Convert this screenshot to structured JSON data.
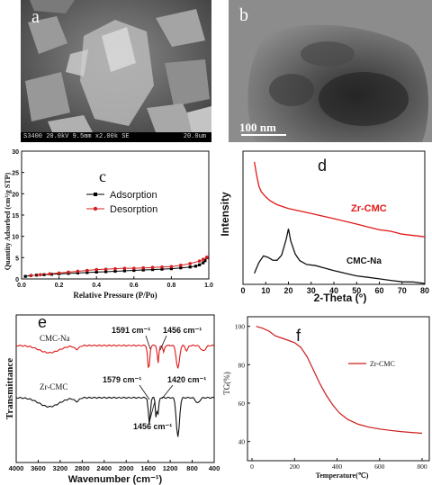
{
  "panels": {
    "a": {
      "letter": "a",
      "footer_left": "S3400 20.0kV 9.5mm x2.00k SE",
      "footer_right": "20.0um"
    },
    "b": {
      "letter": "b",
      "scale_label": "100 nm"
    },
    "c": {
      "letter": "c"
    },
    "d": {
      "letter": "d"
    },
    "e": {
      "letter": "e"
    },
    "f": {
      "letter": "f"
    }
  },
  "chart_data": [
    {
      "panel": "c",
      "type": "line",
      "xlabel": "Relative Pressure (P/Po)",
      "ylabel": "Quantity Adsorbed (cm³/g STP)",
      "xlim": [
        0,
        1.0
      ],
      "ylim": [
        0,
        30
      ],
      "xticks": [
        "0.0",
        "0.2",
        "0.4",
        "0.6",
        "0.8",
        "1.0"
      ],
      "yticks": [
        "0",
        "5",
        "10",
        "15",
        "20",
        "25",
        "30"
      ],
      "legend": "upper-left",
      "series": [
        {
          "name": "Adsorption",
          "color": "#000000",
          "marker": "square",
          "x": [
            0.02,
            0.05,
            0.08,
            0.12,
            0.16,
            0.2,
            0.25,
            0.3,
            0.35,
            0.4,
            0.45,
            0.5,
            0.55,
            0.6,
            0.65,
            0.7,
            0.75,
            0.8,
            0.85,
            0.9,
            0.93,
            0.95,
            0.97,
            0.98,
            0.99
          ],
          "y": [
            0.6,
            0.8,
            0.9,
            1.0,
            1.1,
            1.2,
            1.3,
            1.4,
            1.5,
            1.6,
            1.7,
            1.8,
            1.9,
            2.0,
            2.1,
            2.2,
            2.3,
            2.4,
            2.6,
            2.8,
            3.0,
            3.3,
            3.8,
            4.3,
            5.0
          ]
        },
        {
          "name": "Desorption",
          "color": "#d42020",
          "marker": "circle",
          "x": [
            0.99,
            0.97,
            0.95,
            0.9,
            0.85,
            0.8,
            0.75,
            0.7,
            0.65,
            0.6,
            0.55,
            0.5,
            0.45,
            0.4,
            0.35,
            0.3,
            0.25,
            0.2,
            0.15,
            0.1,
            0.05
          ],
          "y": [
            5.1,
            4.6,
            4.2,
            3.6,
            3.2,
            2.9,
            2.8,
            2.7,
            2.6,
            2.5,
            2.5,
            2.4,
            2.3,
            2.2,
            2.0,
            1.8,
            1.6,
            1.4,
            1.2,
            1.0,
            0.8
          ]
        }
      ]
    },
    {
      "panel": "d",
      "type": "line",
      "xlabel": "2-Theta (°)",
      "ylabel": "Intensity",
      "xlim": [
        0,
        80
      ],
      "xticks": [
        "0",
        "10",
        "20",
        "30",
        "40",
        "50",
        "60",
        "70",
        "80"
      ],
      "series": [
        {
          "name": "Zr-CMC",
          "color": "#e01818",
          "x": [
            5,
            6,
            7,
            8,
            10,
            12,
            15,
            20,
            25,
            30,
            35,
            40,
            45,
            50,
            55,
            60,
            65,
            70,
            75,
            80
          ],
          "y": [
            0.92,
            0.82,
            0.74,
            0.7,
            0.66,
            0.63,
            0.6,
            0.57,
            0.55,
            0.53,
            0.51,
            0.49,
            0.47,
            0.45,
            0.43,
            0.41,
            0.4,
            0.38,
            0.37,
            0.36
          ]
        },
        {
          "name": "CMC-Na",
          "color": "#111111",
          "x": [
            5,
            7,
            9,
            11,
            13,
            15,
            17,
            19,
            20,
            21,
            23,
            25,
            28,
            32,
            36,
            40,
            45,
            50,
            55,
            60,
            65,
            70,
            75,
            80
          ],
          "y": [
            0.08,
            0.16,
            0.21,
            0.2,
            0.18,
            0.18,
            0.22,
            0.34,
            0.42,
            0.33,
            0.23,
            0.18,
            0.15,
            0.14,
            0.12,
            0.1,
            0.08,
            0.06,
            0.05,
            0.04,
            0.03,
            0.02,
            0.02,
            0.01
          ]
        }
      ]
    },
    {
      "panel": "e",
      "type": "line",
      "xlabel": "Wavenumber (cm⁻¹)",
      "ylabel": "Transmittance",
      "xlim": [
        4000,
        400
      ],
      "xticks": [
        "4000",
        "3600",
        "3200",
        "2800",
        "2400",
        "2000",
        "1600",
        "1200",
        "800",
        "400"
      ],
      "annotations": [
        "1591 cm⁻¹",
        "1456 cm⁻¹",
        "1579 cm⁻¹",
        "1420 cm⁻¹",
        "1456 cm⁻¹"
      ],
      "series": [
        {
          "name": "CMC-Na",
          "color": "#e01818"
        },
        {
          "name": "Zr-CMC",
          "color": "#111111"
        }
      ]
    },
    {
      "panel": "f",
      "type": "line",
      "xlabel": "Temperature(℃)",
      "ylabel": "TG(%)",
      "xlim": [
        0,
        800
      ],
      "ylim": [
        40,
        100
      ],
      "xticks": [
        "0",
        "200",
        "400",
        "600",
        "800"
      ],
      "yticks": [
        "40",
        "60",
        "80",
        "100"
      ],
      "legend": "upper-right",
      "series": [
        {
          "name": "Zr-CMC",
          "color": "#cc1c1c",
          "x": [
            20,
            50,
            80,
            110,
            150,
            200,
            230,
            260,
            290,
            320,
            350,
            380,
            410,
            450,
            500,
            550,
            600,
            650,
            700,
            750,
            800
          ],
          "y": [
            100,
            99,
            97.5,
            95,
            93.5,
            91.5,
            89,
            84,
            77,
            70,
            64,
            59,
            55,
            51.5,
            49,
            47.5,
            46.5,
            45.8,
            45.2,
            44.7,
            44.3
          ]
        }
      ]
    }
  ]
}
